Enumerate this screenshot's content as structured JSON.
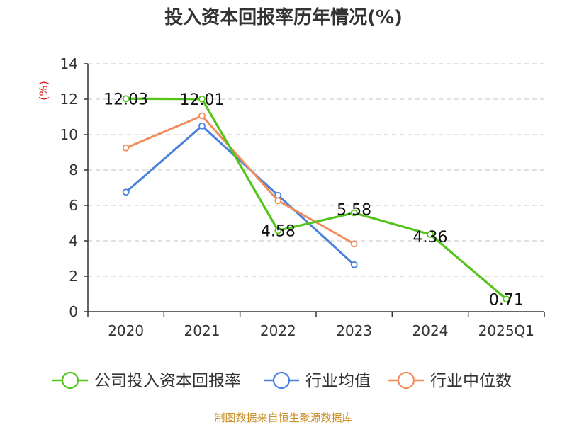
{
  "chart_data": {
    "type": "line",
    "title": "投入资本回报率历年情况(%)",
    "ylabel": "(%)",
    "xlabel": "",
    "categories": [
      "2020",
      "2021",
      "2022",
      "2023",
      "2024",
      "2025Q1"
    ],
    "ylim": [
      0,
      14
    ],
    "yticks": [
      0,
      2,
      4,
      6,
      8,
      10,
      12,
      14
    ],
    "grid": true,
    "legend_position": "bottom",
    "series": [
      {
        "name": "公司投入资本回报率",
        "color": "#52c41a",
        "values": [
          12.03,
          12.01,
          4.58,
          5.58,
          4.36,
          0.71
        ],
        "labels": [
          "12.03",
          "12.01",
          "4.58",
          "5.58",
          "4.36",
          "0.71"
        ]
      },
      {
        "name": "行业均值",
        "color": "#4a7fdc",
        "values": [
          6.75,
          10.49,
          6.57,
          2.65,
          null,
          null
        ]
      },
      {
        "name": "行业中位数",
        "color": "#f28c5a",
        "values": [
          9.25,
          11.06,
          6.27,
          3.83,
          null,
          null
        ]
      }
    ],
    "source": "制图数据来自恒生聚源数据库"
  }
}
